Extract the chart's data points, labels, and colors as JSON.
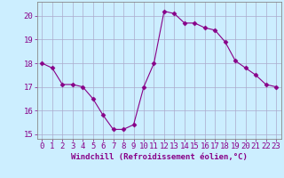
{
  "x": [
    0,
    1,
    2,
    3,
    4,
    5,
    6,
    7,
    8,
    9,
    10,
    11,
    12,
    13,
    14,
    15,
    16,
    17,
    18,
    19,
    20,
    21,
    22,
    23
  ],
  "y": [
    18.0,
    17.8,
    17.1,
    17.1,
    17.0,
    16.5,
    15.8,
    15.2,
    15.2,
    15.4,
    17.0,
    18.0,
    20.2,
    20.1,
    19.7,
    19.7,
    19.5,
    19.4,
    18.9,
    18.1,
    17.8,
    17.5,
    17.1,
    17.0
  ],
  "line_color": "#880088",
  "marker": "D",
  "marker_size": 2.5,
  "bg_color": "#cceeff",
  "grid_color": "#aaaacc",
  "xlabel": "Windchill (Refroidissement éolien,°C)",
  "xlim": [
    -0.5,
    23.5
  ],
  "ylim": [
    14.8,
    20.6
  ],
  "yticks": [
    15,
    16,
    17,
    18,
    19,
    20
  ],
  "xticks": [
    0,
    1,
    2,
    3,
    4,
    5,
    6,
    7,
    8,
    9,
    10,
    11,
    12,
    13,
    14,
    15,
    16,
    17,
    18,
    19,
    20,
    21,
    22,
    23
  ],
  "xtick_labels": [
    "0",
    "1",
    "2",
    "3",
    "4",
    "5",
    "6",
    "7",
    "8",
    "9",
    "10",
    "11",
    "12",
    "13",
    "14",
    "15",
    "16",
    "17",
    "18",
    "19",
    "20",
    "21",
    "22",
    "23"
  ],
  "xlabel_color": "#880088",
  "xlabel_fontsize": 6.5,
  "tick_fontsize": 6.5,
  "tick_color": "#880088",
  "spine_color": "#888888"
}
